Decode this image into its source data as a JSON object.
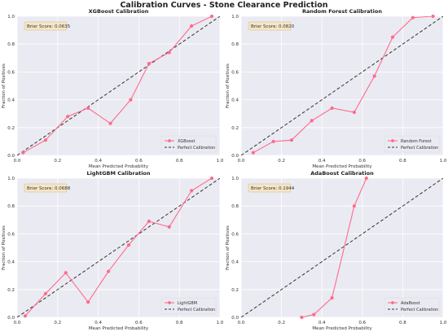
{
  "figure": {
    "title": "Calibration Curves - Stone Clearance Prediction"
  },
  "colors": {
    "curve": "#ff6b8a",
    "perfect": "#333333",
    "plot_bg": "#eaeaf2",
    "grid": "#ffffff",
    "score_box_bg": "#f5e6c8",
    "score_box_border": "#d9b77a"
  },
  "chart_data": [
    {
      "type": "line",
      "title": "XGBoost Calibration",
      "xlabel": "Mean Predicted Probability",
      "ylabel": "Fraction of Positives",
      "xlim": [
        0,
        1
      ],
      "ylim": [
        0,
        1
      ],
      "xticks": [
        "0.0",
        "0.2",
        "0.4",
        "0.6",
        "0.8",
        "1.0"
      ],
      "yticks": [
        "0.0",
        "0.2",
        "0.4",
        "0.6",
        "0.8",
        "1.0"
      ],
      "grid": true,
      "legend_position": "bottom-right",
      "annotation": "Brier Score: 0.0635",
      "series": [
        {
          "name": "XGBoost",
          "x": [
            0.03,
            0.14,
            0.25,
            0.35,
            0.46,
            0.56,
            0.65,
            0.75,
            0.86,
            0.96
          ],
          "y": [
            0.02,
            0.11,
            0.28,
            0.34,
            0.23,
            0.4,
            0.66,
            0.74,
            0.93,
            1.0
          ]
        },
        {
          "name": "Perfect Calibration",
          "x": [
            0,
            1
          ],
          "y": [
            0,
            1
          ],
          "style": "dashed"
        }
      ]
    },
    {
      "type": "line",
      "title": "Random Forest Calibration",
      "xlabel": "Mean Predicted Probability",
      "ylabel": "Fraction of Positives",
      "xlim": [
        0,
        1
      ],
      "ylim": [
        0,
        1
      ],
      "xticks": [
        "0.0",
        "0.2",
        "0.4",
        "0.6",
        "0.8",
        "1.0"
      ],
      "yticks": [
        "0.0",
        "0.2",
        "0.4",
        "0.6",
        "0.8",
        "1.0"
      ],
      "grid": true,
      "legend_position": "bottom-right",
      "annotation": "Brier Score: 0.0820",
      "series": [
        {
          "name": "Random Forest",
          "x": [
            0.06,
            0.16,
            0.25,
            0.35,
            0.45,
            0.56,
            0.66,
            0.75,
            0.85,
            0.95
          ],
          "y": [
            0.02,
            0.1,
            0.11,
            0.25,
            0.34,
            0.31,
            0.57,
            0.85,
            0.99,
            1.0
          ]
        },
        {
          "name": "Perfect Calibration",
          "x": [
            0,
            1
          ],
          "y": [
            0,
            1
          ],
          "style": "dashed"
        }
      ]
    },
    {
      "type": "line",
      "title": "LightGBM Calibration",
      "xlabel": "Mean Predicted Probability",
      "ylabel": "Fraction of Positives",
      "xlim": [
        0,
        1
      ],
      "ylim": [
        0,
        1
      ],
      "xticks": [
        "0.0",
        "0.2",
        "0.4",
        "0.6",
        "0.8",
        "1.0"
      ],
      "yticks": [
        "0.0",
        "0.2",
        "0.4",
        "0.6",
        "0.8",
        "1.0"
      ],
      "grid": true,
      "legend_position": "bottom-right",
      "annotation": "Brier Score: 0.0688",
      "series": [
        {
          "name": "LightGBM",
          "x": [
            0.04,
            0.14,
            0.24,
            0.35,
            0.45,
            0.55,
            0.65,
            0.75,
            0.86,
            0.96
          ],
          "y": [
            0.01,
            0.17,
            0.32,
            0.11,
            0.33,
            0.52,
            0.69,
            0.65,
            0.91,
            1.0
          ]
        },
        {
          "name": "Perfect Calibration",
          "x": [
            0,
            1
          ],
          "y": [
            0,
            1
          ],
          "style": "dashed"
        }
      ]
    },
    {
      "type": "line",
      "title": "AdaBoost Calibration",
      "xlabel": "Mean Predicted Probability",
      "ylabel": "Fraction of Positives",
      "xlim": [
        0,
        1
      ],
      "ylim": [
        0,
        1
      ],
      "xticks": [
        "0.0",
        "0.2",
        "0.4",
        "0.6",
        "0.8",
        "1.0"
      ],
      "yticks": [
        "0.0",
        "0.2",
        "0.4",
        "0.6",
        "0.8",
        "1.0"
      ],
      "grid": true,
      "legend_position": "bottom-right",
      "annotation": "Brier Score: 0.1944",
      "series": [
        {
          "name": "AdaBoost",
          "x": [
            0.3,
            0.36,
            0.45,
            0.56,
            0.62
          ],
          "y": [
            0.0,
            0.02,
            0.14,
            0.8,
            1.0
          ]
        },
        {
          "name": "Perfect Calibration",
          "x": [
            0,
            1
          ],
          "y": [
            0,
            1
          ],
          "style": "dashed"
        }
      ]
    }
  ]
}
